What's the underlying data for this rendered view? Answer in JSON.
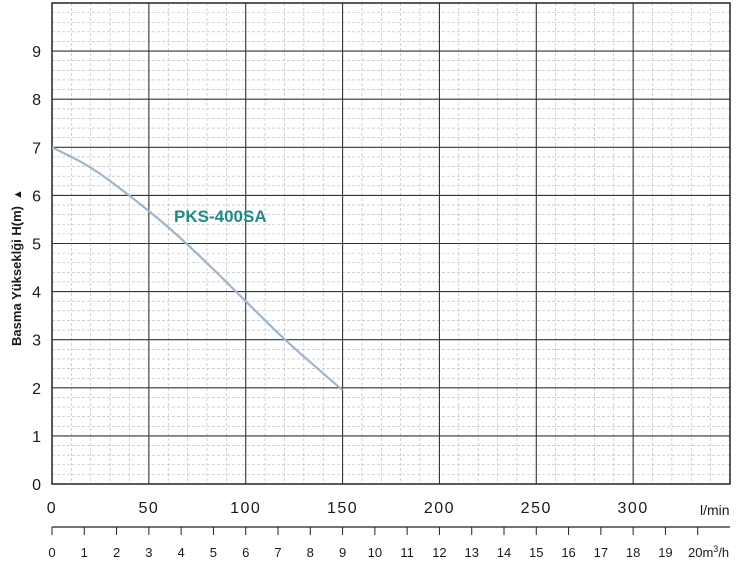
{
  "chart_data": {
    "type": "line",
    "title": "",
    "ylabel": "Basma Yükseklği H(m)",
    "ylabel_arrow": "▲",
    "xlabel_primary_unit": "l/min",
    "xlabel_secondary_unit_prefix": "20m",
    "xlabel_secondary_unit_sup": "3",
    "xlabel_secondary_unit_suffix": "/h",
    "xlim_primary": [
      0,
      350
    ],
    "xlim_secondary": [
      0,
      20
    ],
    "ylim": [
      0,
      10
    ],
    "grid": true,
    "y_ticks": [
      "0",
      "1",
      "2",
      "3",
      "4",
      "5",
      "6",
      "7",
      "8",
      "9"
    ],
    "x_ticks_primary": [
      "0",
      "50",
      "100",
      "150",
      "200",
      "250",
      "300"
    ],
    "x_ticks_secondary": [
      "0",
      "1",
      "2",
      "3",
      "4",
      "5",
      "6",
      "7",
      "8",
      "9",
      "10",
      "11",
      "12",
      "13",
      "14",
      "15",
      "16",
      "17",
      "18",
      "19"
    ],
    "series": [
      {
        "name": "PKS-400SA",
        "color": "#9fb5cc",
        "label_color": "#1f8a85",
        "points": [
          [
            0,
            7.0
          ],
          [
            20,
            6.6
          ],
          [
            40,
            6.0
          ],
          [
            60,
            5.35
          ],
          [
            80,
            4.6
          ],
          [
            100,
            3.8
          ],
          [
            120,
            3.0
          ],
          [
            140,
            2.3
          ],
          [
            150,
            1.95
          ]
        ]
      }
    ]
  }
}
